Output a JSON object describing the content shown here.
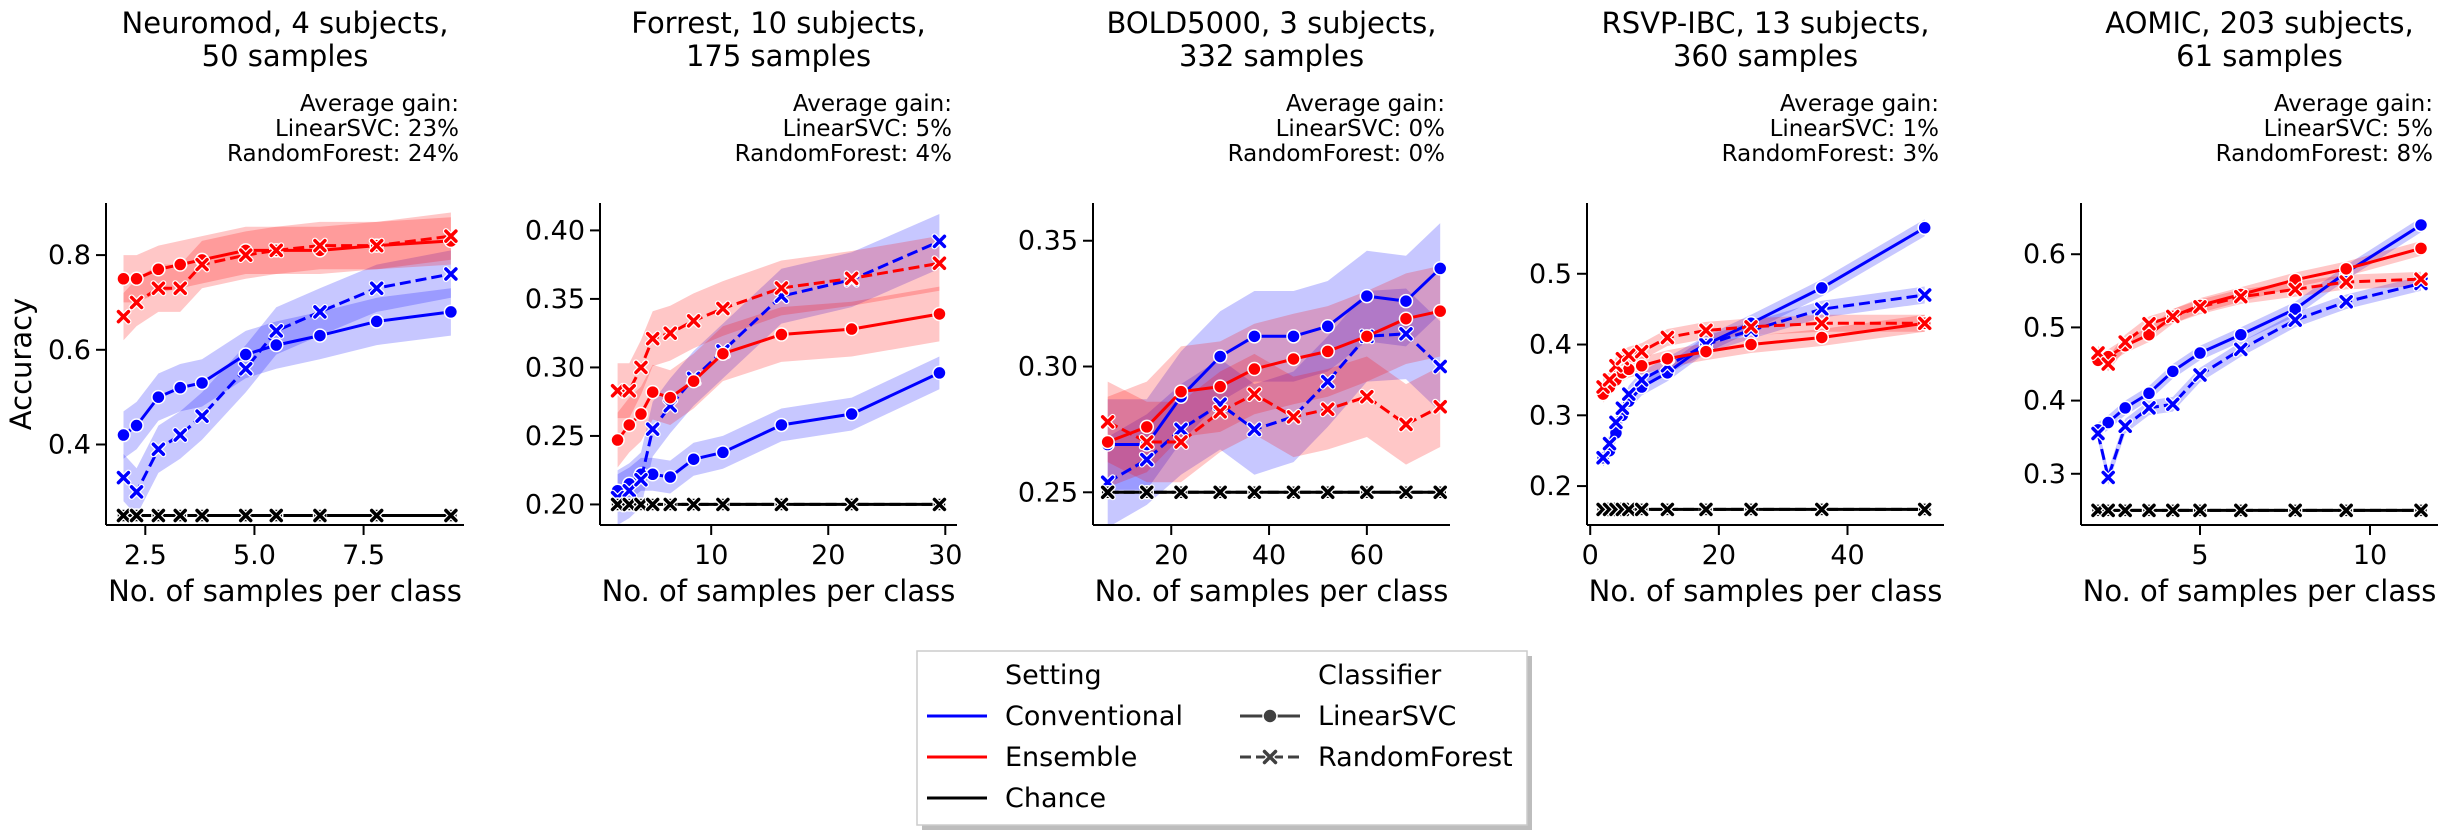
{
  "colors": {
    "conventional": "#0000ff",
    "ensemble": "#ff0000",
    "chance": "#000000"
  },
  "legend": {
    "setting_title": "Setting",
    "setting_items": [
      "Conventional",
      "Ensemble",
      "Chance"
    ],
    "classifier_title": "Classifier",
    "classifier_items": [
      "LinearSVC",
      "RandomForest"
    ],
    "placement": "bottom-center"
  },
  "chart_data": [
    {
      "type": "line",
      "title": [
        "Neuromod, 4 subjects,",
        "50 samples"
      ],
      "annotation": [
        "Average gain:",
        "LinearSVC: 23%",
        "RandomForest: 24%"
      ],
      "xlabel": "No. of samples per class",
      "ylabel": "Accuracy",
      "xlim": [
        1.6,
        9.8
      ],
      "ylim": [
        0.23,
        0.91
      ],
      "xticks": [
        2.5,
        5.0,
        7.5
      ],
      "xticklabels": [
        "2.5",
        "5.0",
        "7.5"
      ],
      "yticks": [
        0.4,
        0.6,
        0.8
      ],
      "yticklabels": [
        "0.4",
        "0.6",
        "0.8"
      ],
      "x": [
        2.0,
        2.3,
        2.8,
        3.3,
        3.8,
        4.8,
        5.5,
        6.5,
        7.8,
        9.5
      ],
      "series": [
        {
          "setting": "Conventional",
          "classifier": "LinearSVC",
          "values": [
            0.42,
            0.44,
            0.5,
            0.52,
            0.53,
            0.59,
            0.61,
            0.63,
            0.66,
            0.68
          ],
          "band": 0.05
        },
        {
          "setting": "Conventional",
          "classifier": "RandomForest",
          "values": [
            0.33,
            0.3,
            0.39,
            0.42,
            0.46,
            0.56,
            0.64,
            0.68,
            0.73,
            0.76
          ],
          "band": 0.05
        },
        {
          "setting": "Ensemble",
          "classifier": "LinearSVC",
          "values": [
            0.75,
            0.75,
            0.77,
            0.78,
            0.79,
            0.81,
            0.81,
            0.81,
            0.82,
            0.83
          ],
          "band": 0.05
        },
        {
          "setting": "Ensemble",
          "classifier": "RandomForest",
          "values": [
            0.67,
            0.7,
            0.73,
            0.73,
            0.78,
            0.8,
            0.81,
            0.82,
            0.82,
            0.84
          ],
          "band": 0.05
        },
        {
          "setting": "Chance",
          "classifier": "LinearSVC",
          "values": [
            0.25,
            0.25,
            0.25,
            0.25,
            0.25,
            0.25,
            0.25,
            0.25,
            0.25,
            0.25
          ],
          "band": 0
        },
        {
          "setting": "Chance",
          "classifier": "RandomForest",
          "values": [
            0.25,
            0.25,
            0.25,
            0.25,
            0.25,
            0.25,
            0.25,
            0.25,
            0.25,
            0.25
          ],
          "band": 0
        }
      ]
    },
    {
      "type": "line",
      "title": [
        "Forrest, 10 subjects,",
        "175 samples"
      ],
      "annotation": [
        "Average gain:",
        "LinearSVC: 5%",
        "RandomForest: 4%"
      ],
      "xlabel": "No. of samples per class",
      "ylabel": "",
      "xlim": [
        0.5,
        31
      ],
      "ylim": [
        0.185,
        0.42
      ],
      "xticks": [
        10,
        20,
        30
      ],
      "xticklabels": [
        "10",
        "20",
        "30"
      ],
      "yticks": [
        0.2,
        0.25,
        0.3,
        0.35,
        0.4
      ],
      "yticklabels": [
        "0.20",
        "0.25",
        "0.30",
        "0.35",
        "0.40"
      ],
      "x": [
        2,
        3,
        4,
        5,
        6.5,
        8.5,
        11,
        16,
        22,
        29.5
      ],
      "series": [
        {
          "setting": "Conventional",
          "classifier": "LinearSVC",
          "values": [
            0.21,
            0.215,
            0.222,
            0.222,
            0.22,
            0.233,
            0.238,
            0.258,
            0.266,
            0.296
          ],
          "band": 0.012
        },
        {
          "setting": "Conventional",
          "classifier": "RandomForest",
          "values": [
            0.205,
            0.21,
            0.218,
            0.255,
            0.272,
            0.292,
            0.312,
            0.352,
            0.364,
            0.392
          ],
          "band": 0.02
        },
        {
          "setting": "Ensemble",
          "classifier": "LinearSVC",
          "values": [
            0.247,
            0.258,
            0.266,
            0.282,
            0.278,
            0.29,
            0.31,
            0.324,
            0.328,
            0.339
          ],
          "band": 0.02
        },
        {
          "setting": "Ensemble",
          "classifier": "RandomForest",
          "values": [
            0.283,
            0.283,
            0.3,
            0.321,
            0.325,
            0.334,
            0.343,
            0.358,
            0.365,
            0.376
          ],
          "band": 0.02
        },
        {
          "setting": "Chance",
          "classifier": "LinearSVC",
          "values": [
            0.2,
            0.2,
            0.2,
            0.2,
            0.2,
            0.2,
            0.2,
            0.2,
            0.2,
            0.2
          ],
          "band": 0
        },
        {
          "setting": "Chance",
          "classifier": "RandomForest",
          "values": [
            0.2,
            0.2,
            0.2,
            0.2,
            0.2,
            0.2,
            0.2,
            0.2,
            0.2,
            0.2
          ],
          "band": 0
        }
      ]
    },
    {
      "type": "line",
      "title": [
        "BOLD5000, 3 subjects,",
        "332 samples"
      ],
      "annotation": [
        "Average gain:",
        "LinearSVC: 0%",
        "RandomForest: 0%"
      ],
      "xlabel": "No. of samples per class",
      "ylabel": "",
      "xlim": [
        4,
        77
      ],
      "ylim": [
        0.237,
        0.365
      ],
      "xticks": [
        20,
        40,
        60
      ],
      "xticklabels": [
        "20",
        "40",
        "60"
      ],
      "yticks": [
        0.25,
        0.3,
        0.35
      ],
      "yticklabels": [
        "0.25",
        "0.30",
        "0.35"
      ],
      "x": [
        7,
        15,
        22,
        30,
        37,
        45,
        52,
        60,
        68,
        75
      ],
      "series": [
        {
          "setting": "Conventional",
          "classifier": "LinearSVC",
          "values": [
            0.269,
            0.269,
            0.288,
            0.304,
            0.312,
            0.312,
            0.316,
            0.328,
            0.326,
            0.339
          ],
          "band": 0.018
        },
        {
          "setting": "Conventional",
          "classifier": "RandomForest",
          "values": [
            0.254,
            0.263,
            0.275,
            0.285,
            0.275,
            0.28,
            0.294,
            0.312,
            0.313,
            0.3
          ],
          "band": 0.018
        },
        {
          "setting": "Ensemble",
          "classifier": "LinearSVC",
          "values": [
            0.27,
            0.276,
            0.29,
            0.292,
            0.299,
            0.303,
            0.306,
            0.312,
            0.319,
            0.322
          ],
          "band": 0.018
        },
        {
          "setting": "Ensemble",
          "classifier": "RandomForest",
          "values": [
            0.278,
            0.27,
            0.27,
            0.282,
            0.289,
            0.28,
            0.283,
            0.288,
            0.277,
            0.284
          ],
          "band": 0.016
        },
        {
          "setting": "Chance",
          "classifier": "LinearSVC",
          "values": [
            0.25,
            0.25,
            0.25,
            0.25,
            0.25,
            0.25,
            0.25,
            0.25,
            0.25,
            0.25
          ],
          "band": 0
        },
        {
          "setting": "Chance",
          "classifier": "RandomForest",
          "values": [
            0.25,
            0.25,
            0.25,
            0.25,
            0.25,
            0.25,
            0.25,
            0.25,
            0.25,
            0.25
          ],
          "band": 0
        }
      ]
    },
    {
      "type": "line",
      "title": [
        "RSVP-IBC, 13 subjects,",
        "360 samples"
      ],
      "annotation": [
        "Average gain:",
        "LinearSVC: 1%",
        "RandomForest: 3%"
      ],
      "xlabel": "No. of samples per class",
      "ylabel": "",
      "xlim": [
        -0.5,
        55
      ],
      "ylim": [
        0.145,
        0.6
      ],
      "xticks": [
        0,
        20,
        40
      ],
      "xticklabels": [
        "0",
        "20",
        "40"
      ],
      "yticks": [
        0.2,
        0.3,
        0.4,
        0.5
      ],
      "yticklabels": [
        "0.2",
        "0.3",
        "0.4",
        "0.5"
      ],
      "x": [
        2,
        3,
        4,
        5,
        6,
        8,
        12,
        18,
        25,
        36,
        52
      ],
      "series": [
        {
          "setting": "Conventional",
          "classifier": "LinearSVC",
          "values": [
            0.24,
            0.25,
            0.275,
            0.3,
            0.32,
            0.34,
            0.36,
            0.4,
            0.43,
            0.48,
            0.565
          ],
          "band": 0.012
        },
        {
          "setting": "Conventional",
          "classifier": "RandomForest",
          "values": [
            0.24,
            0.26,
            0.29,
            0.31,
            0.33,
            0.35,
            0.37,
            0.4,
            0.42,
            0.45,
            0.47
          ],
          "band": 0.012
        },
        {
          "setting": "Ensemble",
          "classifier": "LinearSVC",
          "values": [
            0.33,
            0.34,
            0.35,
            0.36,
            0.365,
            0.37,
            0.38,
            0.39,
            0.4,
            0.41,
            0.43
          ],
          "band": 0.012
        },
        {
          "setting": "Ensemble",
          "classifier": "RandomForest",
          "values": [
            0.34,
            0.35,
            0.37,
            0.38,
            0.385,
            0.39,
            0.41,
            0.42,
            0.425,
            0.43,
            0.43
          ],
          "band": 0.012
        },
        {
          "setting": "Chance",
          "classifier": "LinearSVC",
          "values": [
            0.167,
            0.167,
            0.167,
            0.167,
            0.167,
            0.167,
            0.167,
            0.167,
            0.167,
            0.167,
            0.167
          ],
          "band": 0
        },
        {
          "setting": "Chance",
          "classifier": "RandomForest",
          "values": [
            0.167,
            0.167,
            0.167,
            0.167,
            0.167,
            0.167,
            0.167,
            0.167,
            0.167,
            0.167,
            0.167
          ],
          "band": 0
        }
      ]
    },
    {
      "type": "line",
      "title": [
        "AOMIC, 203 subjects,",
        "61 samples"
      ],
      "annotation": [
        "Average gain:",
        "LinearSVC: 5%",
        "RandomForest: 8%"
      ],
      "xlabel": "No. of samples per class",
      "ylabel": "",
      "xlim": [
        1.5,
        12
      ],
      "ylim": [
        0.23,
        0.67
      ],
      "xticks": [
        5,
        10
      ],
      "xticklabels": [
        "5",
        "10"
      ],
      "yticks": [
        0.3,
        0.4,
        0.5,
        0.6
      ],
      "yticklabels": [
        "0.3",
        "0.4",
        "0.5",
        "0.6"
      ],
      "x": [
        2.0,
        2.3,
        2.8,
        3.5,
        4.2,
        5.0,
        6.2,
        7.8,
        9.3,
        11.5
      ],
      "series": [
        {
          "setting": "Conventional",
          "classifier": "LinearSVC",
          "values": [
            0.36,
            0.37,
            0.39,
            0.41,
            0.44,
            0.465,
            0.49,
            0.525,
            0.575,
            0.64
          ],
          "band": 0.01
        },
        {
          "setting": "Conventional",
          "classifier": "RandomForest",
          "values": [
            0.355,
            0.295,
            0.365,
            0.39,
            0.395,
            0.435,
            0.47,
            0.51,
            0.535,
            0.56
          ],
          "band": 0.01
        },
        {
          "setting": "Ensemble",
          "classifier": "LinearSVC",
          "values": [
            0.455,
            0.46,
            0.475,
            0.49,
            0.515,
            0.53,
            0.545,
            0.565,
            0.58,
            0.608
          ],
          "band": 0.01
        },
        {
          "setting": "Ensemble",
          "classifier": "RandomForest",
          "values": [
            0.465,
            0.45,
            0.48,
            0.505,
            0.515,
            0.528,
            0.542,
            0.552,
            0.562,
            0.566
          ],
          "band": 0.01
        },
        {
          "setting": "Chance",
          "classifier": "LinearSVC",
          "values": [
            0.25,
            0.25,
            0.25,
            0.25,
            0.25,
            0.25,
            0.25,
            0.25,
            0.25,
            0.25
          ],
          "band": 0
        },
        {
          "setting": "Chance",
          "classifier": "RandomForest",
          "values": [
            0.25,
            0.25,
            0.25,
            0.25,
            0.25,
            0.25,
            0.25,
            0.25,
            0.25,
            0.25
          ],
          "band": 0
        }
      ]
    }
  ]
}
